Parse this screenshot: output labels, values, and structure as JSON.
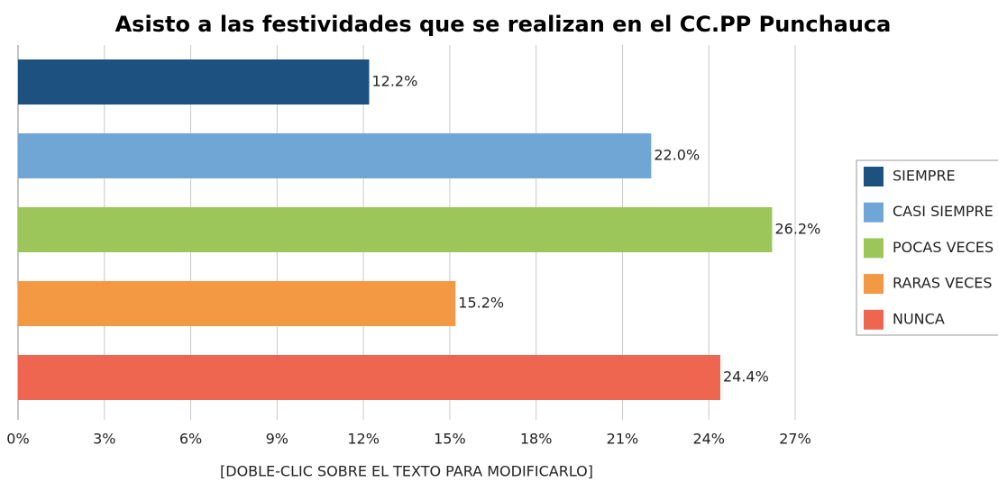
{
  "chart_data": {
    "type": "bar",
    "orientation": "horizontal",
    "title": "Asisto a las festividades que se realizan en el CC.PP Punchauca",
    "x_label": "[DOBLE-CLIC SOBRE EL TEXTO PARA MODIFICARLO]",
    "categories": [
      "SIEMPRE",
      "CASI SIEMPRE",
      "POCAS VECES",
      "RARAS VECES",
      "NUNCA"
    ],
    "values": [
      12.2,
      22.0,
      26.2,
      15.2,
      24.4
    ],
    "value_labels": [
      "12.2%",
      "22.0%",
      "26.2%",
      "15.2%",
      "24.4%"
    ],
    "colors": [
      "#1d5280",
      "#6fa6d5",
      "#9cc65a",
      "#f39843",
      "#ee6650"
    ],
    "xlim": [
      0,
      27
    ],
    "xticks": [
      {
        "value": 0,
        "label": "0%"
      },
      {
        "value": 3,
        "label": "3%"
      },
      {
        "value": 6,
        "label": "6%"
      },
      {
        "value": 9,
        "label": "9%"
      },
      {
        "value": 12,
        "label": "12%"
      },
      {
        "value": 15,
        "label": "15%"
      },
      {
        "value": 18,
        "label": "18%"
      },
      {
        "value": 21,
        "label": "21%"
      },
      {
        "value": 24,
        "label": "24%"
      },
      {
        "value": 27,
        "label": "27%"
      }
    ],
    "grid": true,
    "legend": "right"
  }
}
